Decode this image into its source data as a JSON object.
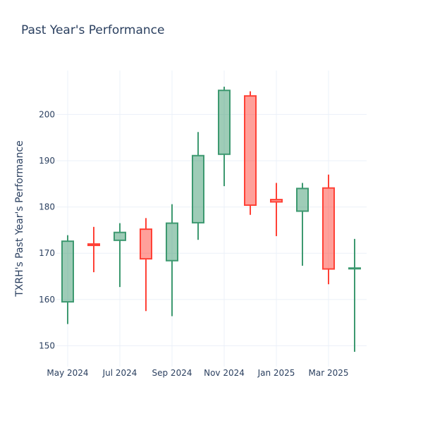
{
  "chart_data": {
    "type": "candlestick",
    "title": "Past Year's Performance",
    "xlabel": "",
    "ylabel": "TXRH's Past Year's Performance",
    "ylim": [
      145.5,
      209.5
    ],
    "y_ticks": [
      150,
      160,
      170,
      180,
      190,
      200
    ],
    "x_ticks": [
      "May 2024",
      "Jul 2024",
      "Sep 2024",
      "Nov 2024",
      "Jan 2025",
      "Mar 2025"
    ],
    "increasing_color": "#3d9970",
    "decreasing_color": "#ff4136",
    "grid": true,
    "candles": [
      {
        "month": "2024-05",
        "open": 159.5,
        "high": 173.9,
        "low": 154.7,
        "close": 172.6
      },
      {
        "month": "2024-06",
        "open": 172.0,
        "high": 175.7,
        "low": 165.9,
        "close": 171.7
      },
      {
        "month": "2024-07",
        "open": 172.8,
        "high": 176.5,
        "low": 162.7,
        "close": 174.5
      },
      {
        "month": "2024-08",
        "open": 175.2,
        "high": 177.6,
        "low": 157.5,
        "close": 168.8
      },
      {
        "month": "2024-09",
        "open": 168.4,
        "high": 180.6,
        "low": 156.4,
        "close": 176.5
      },
      {
        "month": "2024-10",
        "open": 176.6,
        "high": 196.2,
        "low": 172.9,
        "close": 191.1
      },
      {
        "month": "2024-11",
        "open": 191.4,
        "high": 206.0,
        "low": 184.5,
        "close": 205.2
      },
      {
        "month": "2024-12",
        "open": 204.0,
        "high": 205.0,
        "low": 178.3,
        "close": 180.4
      },
      {
        "month": "2025-01",
        "open": 181.6,
        "high": 185.2,
        "low": 173.7,
        "close": 181.1
      },
      {
        "month": "2025-02",
        "open": 179.1,
        "high": 185.2,
        "low": 167.3,
        "close": 184.0
      },
      {
        "month": "2025-03",
        "open": 184.1,
        "high": 187.0,
        "low": 163.3,
        "close": 166.6
      },
      {
        "month": "2025-04",
        "open": 166.7,
        "high": 173.1,
        "low": 148.7,
        "close": 166.8
      }
    ]
  }
}
